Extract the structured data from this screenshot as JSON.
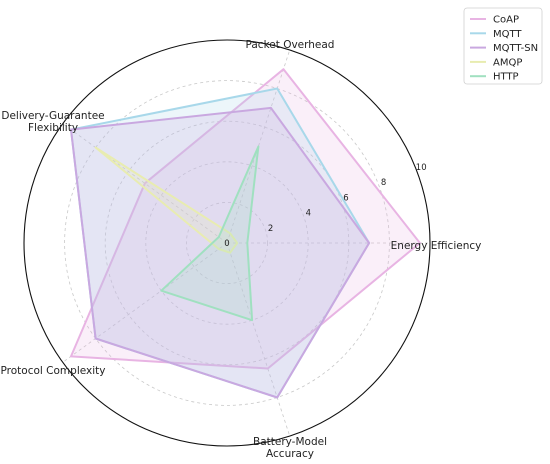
{
  "chart_data": {
    "type": "radar",
    "title": "",
    "axes": [
      "Energy Efficiency",
      "Packet Overhead",
      "Delivery-Guarantee Flexibility",
      "Protocol Complexity",
      "Battery-Model Accuracy"
    ],
    "axes_display": [
      [
        "Energy Efficiency"
      ],
      [
        "Packet Overhead"
      ],
      [
        "Delivery-Guarantee",
        "Flexibility"
      ],
      [
        "Protocol Complexity"
      ],
      [
        "Battery-Model",
        "Accuracy"
      ]
    ],
    "rlim": [
      0,
      10
    ],
    "rticks": [
      2,
      4,
      6,
      8,
      10
    ],
    "rtick_labels": [
      "2",
      "4",
      "6",
      "8",
      "10"
    ],
    "zero_label": "0",
    "grid": true,
    "legend_placement": "top-right",
    "series": [
      {
        "name": "CoAP",
        "color": "#e8b4e3",
        "values": [
          9.5,
          9.0,
          5.0,
          9.5,
          6.5
        ]
      },
      {
        "name": "MQTT",
        "color": "#a8d8ea",
        "values": [
          7.0,
          8.0,
          9.5,
          8.0,
          8.0
        ]
      },
      {
        "name": "MQTT-SN",
        "color": "#c9a8e0",
        "values": [
          7.0,
          7.0,
          9.5,
          8.0,
          8.0
        ]
      },
      {
        "name": "AMQP",
        "color": "#e8ecb0",
        "values": [
          0.5,
          0.5,
          8.0,
          0.5,
          0.5
        ]
      },
      {
        "name": "HTTP",
        "color": "#a0e0c0",
        "values": [
          1.0,
          5.0,
          0.5,
          4.0,
          4.0
        ]
      }
    ]
  }
}
